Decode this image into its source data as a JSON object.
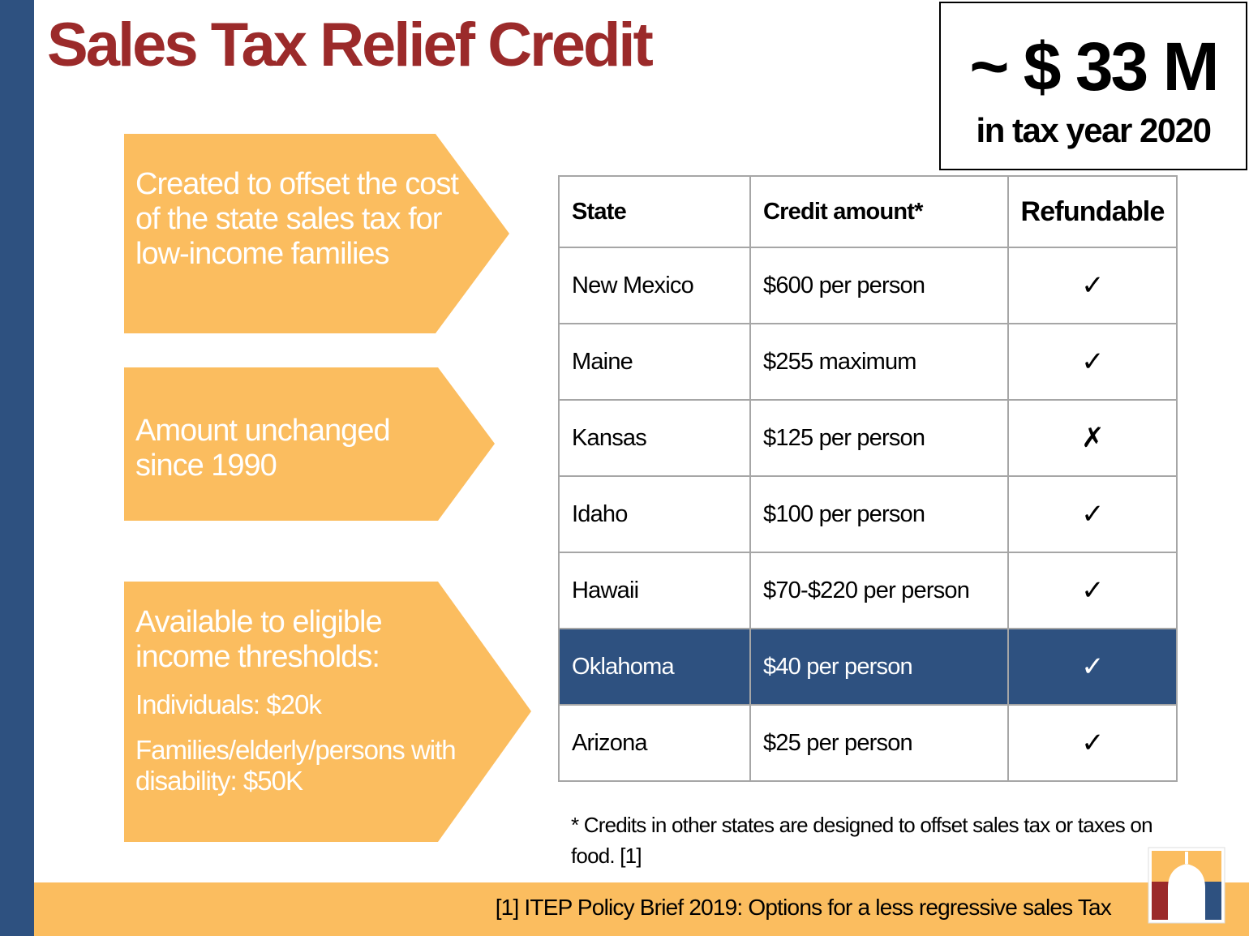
{
  "header": {
    "title": "Sales Tax Relief Credit"
  },
  "highlight": {
    "amount": "~ $ 33 M",
    "period": "in tax year 2020"
  },
  "callouts": [
    {
      "text": "Created to offset the cost of the state sales tax for low-income families"
    },
    {
      "text": "Amount unchanged since 1990"
    },
    {
      "text": "Available to eligible income thresholds:",
      "items": [
        "Individuals: $20k",
        "Families/elderly/persons with disability: $50K"
      ]
    }
  ],
  "table": {
    "columns": [
      "State",
      "Credit amount*",
      "Refundable"
    ],
    "rows": [
      [
        "New Mexico",
        "$600 per person",
        "✓"
      ],
      [
        "Maine",
        "$255 maximum",
        "✓"
      ],
      [
        "Kansas",
        "$125 per person",
        "✗"
      ],
      [
        "Idaho",
        "$100 per person",
        "✓"
      ],
      [
        "Hawaii",
        "$70-$220 per person",
        "✓"
      ],
      [
        "Oklahoma",
        "$40 per person",
        "✓"
      ],
      [
        "Arizona",
        "$25 per person",
        "✓"
      ]
    ]
  },
  "footnote": "* Credits in other states are designed to offset sales tax or taxes on food. [1]",
  "source": "[1] ITEP Policy Brief 2019: Options for a less regressive sales Tax"
}
